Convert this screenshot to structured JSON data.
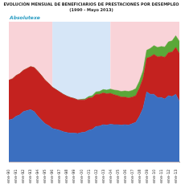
{
  "chart_data": {
    "type": "area",
    "title": "EVOLUCIÓN MENSUAL DE BENEFICIARIOS DE PRESTACIONES POR DESEMPLEO",
    "subtitle": "(1990 - Mayo 2013)",
    "annotations": [
      "Absolutexe"
    ],
    "categories": [
      "ene-90",
      null,
      "ene-91",
      null,
      "ene-92",
      null,
      "ene-93",
      null,
      "ene-94",
      null,
      "ene-95",
      null,
      "ene-96",
      null,
      "ene-97",
      null,
      "ene-98",
      null,
      "ene-99",
      null,
      "ene-00",
      null,
      "ene-01",
      null,
      "ene-02",
      null,
      "ene-03",
      null,
      "ene-04",
      null,
      "ene-05",
      null,
      "ene-06",
      null,
      "ene-07",
      null,
      "ene-08",
      null,
      "ene-09",
      null,
      "ene-10",
      null,
      "ene-11",
      null,
      "ene-12",
      null,
      "ene-13",
      null
    ],
    "series": [
      {
        "color": "#3b6fc0",
        "values": [
          900,
          920,
          980,
          1010,
          1080,
          1100,
          1120,
          1080,
          980,
          900,
          820,
          780,
          720,
          700,
          680,
          650,
          630,
          620,
          620,
          610,
          630,
          640,
          680,
          700,
          760,
          770,
          800,
          790,
          810,
          800,
          800,
          790,
          800,
          790,
          820,
          850,
          980,
          1150,
          1500,
          1450,
          1450,
          1380,
          1380,
          1350,
          1420,
          1400,
          1450,
          1300
        ]
      },
      {
        "color": "#c4221f",
        "values": [
          850,
          860,
          870,
          880,
          880,
          900,
          920,
          940,
          960,
          950,
          930,
          900,
          880,
          850,
          820,
          800,
          780,
          760,
          740,
          720,
          700,
          690,
          690,
          680,
          690,
          680,
          680,
          670,
          660,
          640,
          620,
          600,
          590,
          580,
          570,
          570,
          600,
          640,
          720,
          800,
          850,
          870,
          880,
          890,
          920,
          950,
          1000,
          1020
        ]
      },
      {
        "color": "#5aa839",
        "values": [
          0,
          0,
          0,
          0,
          0,
          0,
          0,
          0,
          0,
          0,
          0,
          0,
          0,
          0,
          0,
          0,
          0,
          0,
          0,
          0,
          10,
          20,
          30,
          40,
          50,
          60,
          70,
          80,
          90,
          100,
          110,
          120,
          130,
          140,
          140,
          150,
          150,
          160,
          170,
          180,
          190,
          200,
          210,
          220,
          230,
          240,
          250,
          260
        ]
      }
    ],
    "bands": [
      {
        "from": "ene-90",
        "to": "ene-96",
        "color": "#f9d3d8"
      },
      {
        "from": "ene-96",
        "to": "ene-04",
        "color": "#d6e6f7"
      },
      {
        "from": "ene-04",
        "color": "#f9d3d8"
      }
    ],
    "ylim": [
      0,
      3000
    ],
    "stacked": true,
    "grid": false,
    "tick_labels": "x"
  }
}
